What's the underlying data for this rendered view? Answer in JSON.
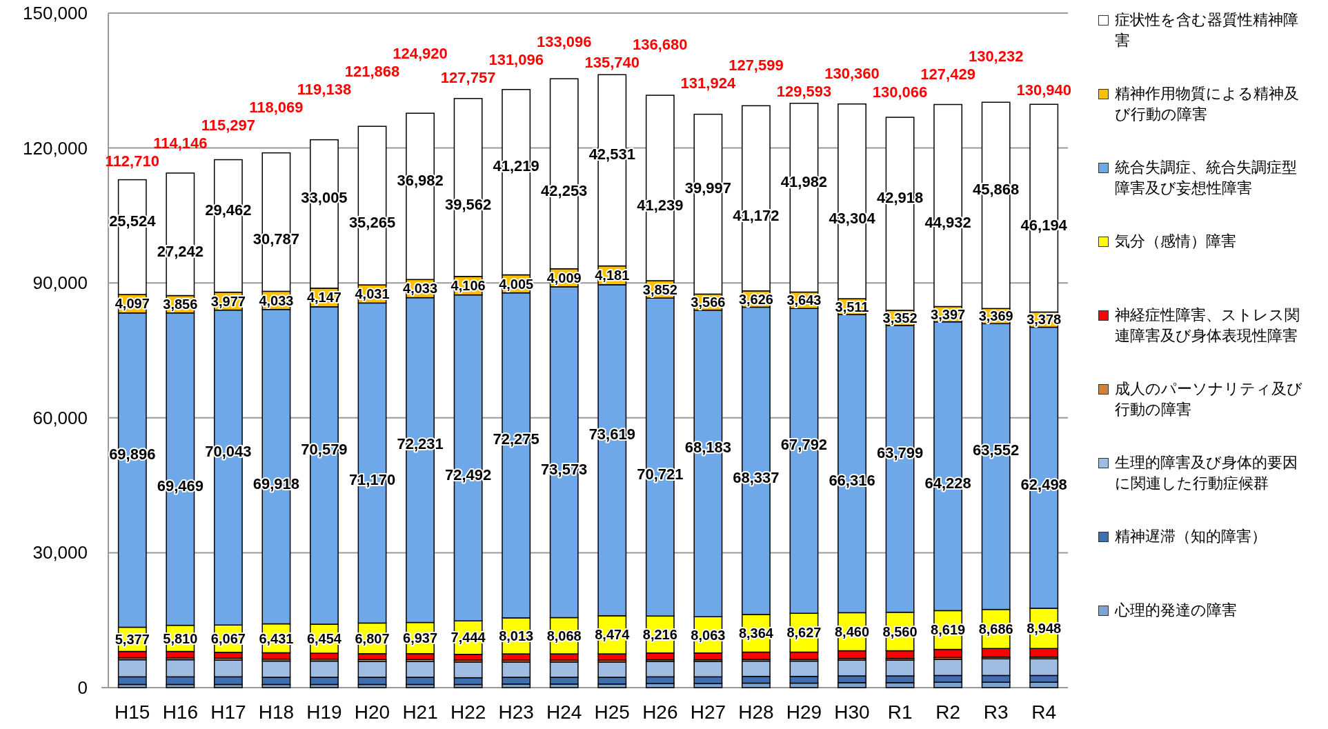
{
  "chart_data": {
    "type": "bar",
    "stacked": true,
    "grid": "y",
    "legend": "right",
    "categories": [
      "H15",
      "H16",
      "H17",
      "H18",
      "H19",
      "H20",
      "H21",
      "H22",
      "H23",
      "H24",
      "H25",
      "H26",
      "H27",
      "H28",
      "H29",
      "H30",
      "R1",
      "R2",
      "R3",
      "R4"
    ],
    "ylim": [
      0,
      150000
    ],
    "yticks": [
      {
        "value": 0,
        "label": "0"
      },
      {
        "value": 30000,
        "label": "30,000"
      },
      {
        "value": 60000,
        "label": "60,000"
      },
      {
        "value": 90000,
        "label": "90,000"
      },
      {
        "value": 120000,
        "label": "120,000"
      },
      {
        "value": 150000,
        "label": "150,000"
      }
    ],
    "series": [
      {
        "name": "心理的発達の障害",
        "color": "#7ea3d0",
        "values": [
          700,
          700,
          700,
          700,
          700,
          700,
          700,
          700,
          800,
          800,
          800,
          900,
          900,
          1000,
          1000,
          1100,
          1100,
          1200,
          1200,
          1200
        ]
      },
      {
        "name": "精神遅滞（知的障害）",
        "color": "#3f6fb0",
        "values": [
          1700,
          1700,
          1700,
          1600,
          1600,
          1600,
          1600,
          1500,
          1500,
          1500,
          1500,
          1500,
          1500,
          1500,
          1500,
          1500,
          1500,
          1500,
          1500,
          1500
        ]
      },
      {
        "name": "生理的障害及び身体的要因に関連した行動症候群",
        "color": "#9fbde3",
        "values": [
          3800,
          3800,
          3700,
          3600,
          3600,
          3500,
          3500,
          3500,
          3400,
          3400,
          3400,
          3400,
          3400,
          3400,
          3400,
          3500,
          3500,
          3600,
          3700,
          3700
        ]
      },
      {
        "name": "成人のパーソナリティ及び行動の障害",
        "color": "#d2813a",
        "values": [
          450,
          450,
          450,
          450,
          450,
          450,
          450,
          400,
          400,
          400,
          400,
          400,
          400,
          400,
          400,
          400,
          400,
          400,
          400,
          400
        ]
      },
      {
        "name": "神経症性障害、ストレス関連障害及び身体表現性障害",
        "color": "#ff0000",
        "values": [
          1400,
          1400,
          1300,
          1400,
          1300,
          1300,
          1300,
          1300,
          1400,
          1400,
          1400,
          1500,
          1500,
          1600,
          1600,
          1700,
          1700,
          1800,
          1900,
          1900
        ]
      },
      {
        "name": "気分（感情）障害",
        "color": "#ffff00",
        "values": [
          5377,
          5810,
          6067,
          6431,
          6454,
          6807,
          6937,
          7444,
          8013,
          8068,
          8474,
          8216,
          8063,
          8364,
          8627,
          8460,
          8560,
          8619,
          8686,
          8948
        ],
        "value_labels": [
          "5,377",
          "5,810",
          "6,067",
          "6,431",
          "6,454",
          "6,807",
          "6,937",
          "7,444",
          "8,013",
          "8,068",
          "8,474",
          "8,216",
          "8,063",
          "8,364",
          "8,627",
          "8,460",
          "8,560",
          "8,619",
          "8,686",
          "8,948"
        ]
      },
      {
        "name": "統合失調症、統合失調症型障害及び妄想性障害",
        "color": "#6fa8e8",
        "values": [
          69896,
          69469,
          70043,
          69918,
          70579,
          71170,
          72231,
          72492,
          72275,
          73573,
          73619,
          70721,
          68183,
          68337,
          67792,
          66316,
          63799,
          64228,
          63552,
          62498
        ],
        "value_labels": [
          "69,896",
          "69,469",
          "70,043",
          "69,918",
          "70,579",
          "71,170",
          "72,231",
          "72,492",
          "72,275",
          "73,573",
          "73,619",
          "70,721",
          "68,183",
          "68,337",
          "67,792",
          "66,316",
          "63,799",
          "64,228",
          "63,552",
          "62,498"
        ]
      },
      {
        "name": "精神作用物質による精神及び行動の障害",
        "color": "#ffc000",
        "values": [
          4097,
          3856,
          3977,
          4033,
          4147,
          4031,
          4033,
          4106,
          4005,
          4009,
          4181,
          3852,
          3566,
          3626,
          3643,
          3511,
          3352,
          3397,
          3369,
          3378
        ],
        "value_labels": [
          "4,097",
          "3,856",
          "3,977",
          "4,033",
          "4,147",
          "4,031",
          "4,033",
          "4,106",
          "4,005",
          "4,009",
          "4,181",
          "3,852",
          "3,566",
          "3,626",
          "3,643",
          "3,511",
          "3,352",
          "3,397",
          "3,369",
          "3,378"
        ]
      },
      {
        "name": "症状性を含む器質性精神障害",
        "color": "#ffffff",
        "values": [
          25524,
          27242,
          29462,
          30787,
          33005,
          35265,
          36982,
          39562,
          41219,
          42253,
          42531,
          41239,
          39997,
          41172,
          41982,
          43304,
          42918,
          44932,
          45868,
          46194
        ],
        "value_labels": [
          "25,524",
          "27,242",
          "29,462",
          "30,787",
          "33,005",
          "35,265",
          "36,982",
          "39,562",
          "41,219",
          "42,253",
          "42,531",
          "41,239",
          "39,997",
          "41,172",
          "41,982",
          "43,304",
          "42,918",
          "44,932",
          "45,868",
          "46,194"
        ]
      }
    ],
    "annotations": [
      "112,710",
      "114,146",
      "115,297",
      "118,069",
      "119,138",
      "121,868",
      "124,920",
      "127,757",
      "131,096",
      "133,096",
      "135,740",
      "136,680",
      "131,924",
      "127,599",
      "129,593",
      "130,360",
      "130,066",
      "127,429",
      "130,232",
      "130,940"
    ]
  }
}
